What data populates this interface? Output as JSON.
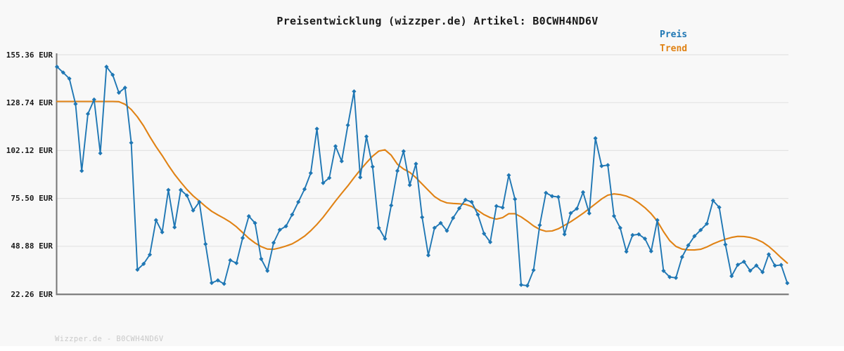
{
  "title": "Preisentwicklung (wizzper.de) Artikel: B0CWH4ND6V",
  "legend": {
    "preis_label": "Preis",
    "trend_label": "Trend"
  },
  "footer": "Wizzper.de - B0CWH4ND6V",
  "colors": {
    "price": "#1f77b4",
    "trend": "#e08214",
    "grid": "#e3e3e3",
    "spine": "#767676",
    "background": "#f8f8f8",
    "title_text": "#1a1a1a",
    "tick_text": "#1a1a1a",
    "footer_text": "#c9c9c9"
  },
  "chart_data": {
    "type": "line",
    "title": "Preisentwicklung (wizzper.de) Artikel: B0CWH4ND6V",
    "ylabel": "EUR",
    "ylim": [
      22.26,
      155.36
    ],
    "grid": "horizontal",
    "legend_position": "top-right",
    "x_tick_labels_visible": false,
    "y_ticks": [
      {
        "label": "155.36 EUR",
        "value": 155.36
      },
      {
        "label": "128.74 EUR",
        "value": 128.74
      },
      {
        "label": "102.12 EUR",
        "value": 102.12
      },
      {
        "label": "75.50 EUR",
        "value": 75.5
      },
      {
        "label": "48.88 EUR",
        "value": 48.88
      },
      {
        "label": "22.26 EUR",
        "value": 22.26
      }
    ],
    "series": [
      {
        "name": "Preis",
        "color": "#1f77b4",
        "markers": true,
        "values": [
          148.7,
          145.5,
          142.1,
          128.0,
          90.8,
          122.5,
          130.4,
          100.6,
          148.7,
          144.2,
          134.3,
          137.0,
          106.4,
          35.9,
          39.1,
          44.2,
          63.4,
          56.7,
          80.2,
          59.4,
          80.2,
          77.1,
          68.8,
          73.5,
          50.1,
          28.5,
          29.9,
          28.0,
          41.1,
          39.5,
          53.5,
          65.6,
          61.8,
          41.8,
          35.2,
          50.8,
          58.0,
          60.0,
          66.5,
          73.5,
          80.6,
          89.6,
          114.2,
          84.1,
          86.9,
          104.5,
          96.2,
          116.2,
          135.0,
          87.2,
          109.9,
          93.1,
          59.1,
          53.1,
          71.6,
          90.8,
          101.7,
          82.9,
          94.7,
          65.0,
          43.9,
          59.1,
          61.8,
          57.5,
          64.6,
          70.0,
          74.7,
          73.5,
          66.5,
          55.9,
          51.2,
          71.2,
          70.4,
          88.4,
          75.1,
          27.4,
          27.0,
          35.6,
          60.6,
          78.6,
          76.7,
          76.3,
          55.5,
          67.3,
          69.8,
          78.9,
          67.2,
          108.9,
          93.5,
          94.0,
          65.7,
          59.1,
          45.9,
          55.1,
          55.5,
          53.1,
          46.1,
          63.4,
          35.2,
          31.8,
          31.3,
          42.9,
          49.4,
          54.5,
          57.9,
          61.4,
          74.3,
          70.5,
          49.8,
          32.3,
          38.6,
          40.3,
          35.3,
          38.2,
          34.5,
          44.4,
          38.1,
          38.5,
          28.4
        ]
      },
      {
        "name": "Trend",
        "color": "#e08214",
        "markers": false,
        "values": [
          129.4,
          129.4,
          129.4,
          129.4,
          129.4,
          129.4,
          129.4,
          129.4,
          129.4,
          129.4,
          129.3,
          127.8,
          124.9,
          120.8,
          115.8,
          109.8,
          104.3,
          99.3,
          93.9,
          88.9,
          84.5,
          80.4,
          76.9,
          74.0,
          71.0,
          68.3,
          66.3,
          64.4,
          62.3,
          59.7,
          56.5,
          53.3,
          50.7,
          48.7,
          47.3,
          47.2,
          48.0,
          49.0,
          50.2,
          52.2,
          54.5,
          57.5,
          61.0,
          65.0,
          69.5,
          74.0,
          78.3,
          82.5,
          87.0,
          91.3,
          95.3,
          99.0,
          101.8,
          102.5,
          99.5,
          94.5,
          91.8,
          90.0,
          87.0,
          83.5,
          80.0,
          76.5,
          74.3,
          73.0,
          72.7,
          72.5,
          72.2,
          71.0,
          68.8,
          66.5,
          64.8,
          64.0,
          64.8,
          67.0,
          67.0,
          65.2,
          62.8,
          60.2,
          58.2,
          57.2,
          57.4,
          58.6,
          60.5,
          62.5,
          64.8,
          67.2,
          69.8,
          72.5,
          75.2,
          77.3,
          78.0,
          77.6,
          76.8,
          75.3,
          73.0,
          70.3,
          67.0,
          62.8,
          57.0,
          52.0,
          48.8,
          47.3,
          46.9,
          46.8,
          47.2,
          48.5,
          50.2,
          51.6,
          52.8,
          53.8,
          54.4,
          54.3,
          53.8,
          52.8,
          51.2,
          48.8,
          45.8,
          42.5,
          39.5
        ]
      }
    ]
  }
}
